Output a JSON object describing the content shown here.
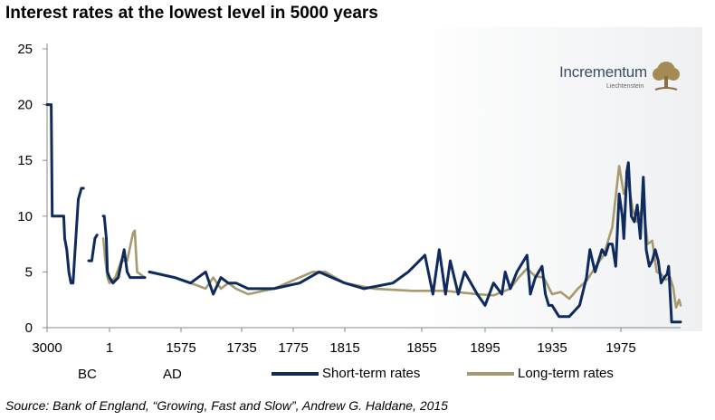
{
  "title": "Interest rates at the lowest level in 5000 years",
  "source": "Source: Bank of England, “Growing, Fast and Slow”, Andrew G. Haldane, 2015",
  "logo": {
    "name": "Incrementum",
    "sub": "Liechtenstein",
    "icon": "tree-icon"
  },
  "era_labels": {
    "bc": "BC",
    "ad": "AD"
  },
  "colors": {
    "short": "#0f2a5c",
    "long": "#a79a6e",
    "axis": "#888888",
    "tree": "#a58a55",
    "logo_text": "#3b4d66"
  },
  "chart_data": {
    "type": "line",
    "title": "Interest rates at the lowest level in 5000 years",
    "xlabel": "",
    "ylabel": "",
    "ylim": [
      0,
      25
    ],
    "yticks": [
      0,
      5,
      10,
      15,
      20,
      25
    ],
    "xticks": [
      "3000",
      "1",
      "1575",
      "1735",
      "1775",
      "1815",
      "1855",
      "1895",
      "1935",
      "1975"
    ],
    "grid": false,
    "legend": "bottom",
    "series": [
      {
        "name": "Short-term rates",
        "color": "#0f2a5c",
        "segments": [
          [
            [
              -3000,
              20
            ],
            [
              -2800,
              20
            ],
            [
              -2750,
              10
            ],
            [
              -2200,
              10
            ],
            [
              -2150,
              8
            ],
            [
              -2050,
              7
            ],
            [
              -1950,
              5
            ],
            [
              -1850,
              4
            ],
            [
              -1750,
              4
            ],
            [
              -1650,
              7
            ],
            [
              -1500,
              11.5
            ],
            [
              -1350,
              12.5
            ],
            [
              -1250,
              12.5
            ]
          ],
          [
            [
              -1000,
              6
            ],
            [
              -850,
              6
            ],
            [
              -700,
              8
            ],
            [
              -600,
              8.3
            ]
          ],
          [
            [
              -300,
              10
            ],
            [
              -250,
              10
            ],
            [
              -150,
              8
            ],
            [
              -100,
              5
            ],
            [
              0,
              4.5
            ],
            [
              60,
              4
            ],
            [
              150,
              4.5
            ],
            [
              250,
              7
            ],
            [
              300,
              5
            ],
            [
              350,
              4.5
            ],
            [
              600,
              4.5
            ]
          ],
          [
            [
              1500,
              5
            ],
            [
              1560,
              4.5
            ],
            [
              1600,
              4
            ],
            [
              1640,
              5
            ],
            [
              1660,
              3
            ],
            [
              1680,
              4.5
            ],
            [
              1700,
              4
            ],
            [
              1720,
              4
            ],
            [
              1740,
              3.5
            ],
            [
              1760,
              3.5
            ],
            [
              1780,
              4
            ],
            [
              1795,
              5
            ],
            [
              1805,
              4.5
            ],
            [
              1815,
              4
            ],
            [
              1825,
              3.5
            ],
            [
              1840,
              4
            ],
            [
              1848,
              5
            ],
            [
              1857,
              6.5
            ],
            [
              1862,
              3
            ],
            [
              1866,
              7
            ],
            [
              1870,
              3
            ],
            [
              1873,
              6
            ],
            [
              1878,
              3
            ],
            [
              1882,
              5
            ],
            [
              1890,
              3
            ],
            [
              1895,
              2
            ],
            [
              1900,
              4
            ],
            [
              1905,
              3
            ],
            [
              1907,
              5
            ],
            [
              1910,
              3.5
            ],
            [
              1914,
              5
            ],
            [
              1920,
              6.5
            ],
            [
              1922,
              3
            ],
            [
              1925,
              4.5
            ],
            [
              1929,
              5.5
            ],
            [
              1931,
              3
            ],
            [
              1933,
              2
            ],
            [
              1935,
              2
            ],
            [
              1939,
              1
            ],
            [
              1945,
              1
            ],
            [
              1951,
              2
            ],
            [
              1955,
              4.5
            ],
            [
              1957,
              7
            ],
            [
              1960,
              5
            ],
            [
              1964,
              7
            ],
            [
              1966,
              6.5
            ],
            [
              1968,
              7.5
            ],
            [
              1970,
              7.5
            ],
            [
              1972,
              5.5
            ],
            [
              1974,
              12
            ],
            [
              1976,
              10
            ],
            [
              1977,
              8
            ],
            [
              1979,
              14
            ],
            [
              1980,
              14.8
            ],
            [
              1982,
              10
            ],
            [
              1984,
              9.5
            ],
            [
              1986,
              11
            ],
            [
              1988,
              8
            ],
            [
              1990,
              13.5
            ],
            [
              1992,
              7
            ],
            [
              1994,
              5.5
            ],
            [
              1996,
              6
            ],
            [
              1998,
              7
            ],
            [
              2000,
              6
            ],
            [
              2002,
              4
            ],
            [
              2004,
              4.5
            ],
            [
              2006,
              4.8
            ],
            [
              2007,
              5.5
            ],
            [
              2009,
              0.5
            ],
            [
              2012,
              0.5
            ],
            [
              2015,
              0.5
            ]
          ]
        ]
      },
      {
        "name": "Long-term rates",
        "color": "#a79a6e",
        "segments": [
          [
            [
              -300,
              8
            ],
            [
              -200,
              6
            ],
            [
              -100,
              4.5
            ],
            [
              0,
              4
            ],
            [
              100,
              4.5
            ],
            [
              200,
              6
            ],
            [
              300,
              6
            ],
            [
              400,
              8.5
            ],
            [
              430,
              8.7
            ],
            [
              470,
              5
            ],
            [
              600,
              4.5
            ]
          ],
          [
            [
              1600,
              4
            ],
            [
              1640,
              3.5
            ],
            [
              1660,
              4.5
            ],
            [
              1680,
              3.5
            ],
            [
              1700,
              4
            ],
            [
              1720,
              3.5
            ],
            [
              1740,
              3
            ],
            [
              1760,
              3.5
            ],
            [
              1780,
              4.5
            ],
            [
              1790,
              5
            ],
            [
              1800,
              5
            ],
            [
              1815,
              4
            ],
            [
              1830,
              3.5
            ],
            [
              1850,
              3.3
            ],
            [
              1870,
              3.3
            ],
            [
              1890,
              3
            ],
            [
              1900,
              2.9
            ],
            [
              1910,
              3.5
            ],
            [
              1915,
              4.5
            ],
            [
              1920,
              5.3
            ],
            [
              1925,
              4.6
            ],
            [
              1930,
              4.5
            ],
            [
              1935,
              3
            ],
            [
              1940,
              3.2
            ],
            [
              1945,
              2.6
            ],
            [
              1950,
              3.5
            ],
            [
              1955,
              4.2
            ],
            [
              1960,
              5.4
            ],
            [
              1965,
              6.5
            ],
            [
              1970,
              9
            ],
            [
              1974,
              14.5
            ],
            [
              1977,
              12
            ],
            [
              1980,
              13
            ],
            [
              1983,
              10.5
            ],
            [
              1986,
              9.5
            ],
            [
              1990,
              11
            ],
            [
              1993,
              7.5
            ],
            [
              1996,
              7.8
            ],
            [
              1999,
              5
            ],
            [
              2002,
              4.8
            ],
            [
              2005,
              4.3
            ],
            [
              2008,
              4.5
            ],
            [
              2010,
              3.6
            ],
            [
              2012,
              1.8
            ],
            [
              2014,
              2.5
            ],
            [
              2015,
              2
            ]
          ]
        ]
      }
    ]
  }
}
